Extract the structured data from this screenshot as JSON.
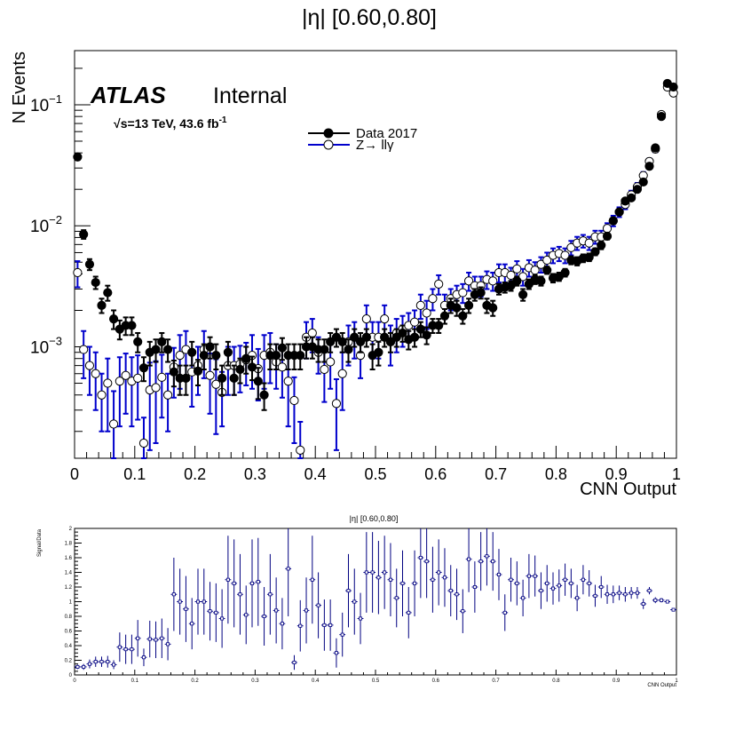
{
  "chart_data": [
    {
      "type": "scatter",
      "title": "|η| [0.60,0.80]",
      "xlabel": "CNN Output",
      "ylabel": "N Events",
      "xlim": [
        0,
        1
      ],
      "ylim": [
        0.00012,
        0.28
      ],
      "yscale": "log",
      "grid": false,
      "legend_position": "top-center",
      "xticks": [
        "0",
        "0.1",
        "0.2",
        "0.3",
        "0.4",
        "0.5",
        "0.6",
        "0.7",
        "0.8",
        "0.9",
        "1"
      ],
      "yticks": [
        {
          "base": "10",
          "exp": "−1",
          "value": 0.1
        },
        {
          "base": "10",
          "exp": "−2",
          "value": 0.01
        },
        {
          "base": "10",
          "exp": "−3",
          "value": 0.001
        }
      ],
      "annotations": {
        "atlas": "ATLAS",
        "status": "Internal",
        "energy_prefix": "√",
        "energy_main": "s=13 TeV, 43.6 fb",
        "energy_exp": "-1"
      },
      "series": [
        {
          "name": "Data 2017",
          "marker": "filled-circle",
          "color": "#000000",
          "x": [
            0.005,
            0.015,
            0.025,
            0.035,
            0.045,
            0.055,
            0.065,
            0.075,
            0.085,
            0.095,
            0.105,
            0.115,
            0.125,
            0.135,
            0.145,
            0.155,
            0.165,
            0.175,
            0.185,
            0.195,
            0.205,
            0.215,
            0.225,
            0.235,
            0.245,
            0.255,
            0.265,
            0.275,
            0.285,
            0.295,
            0.305,
            0.315,
            0.325,
            0.335,
            0.345,
            0.355,
            0.365,
            0.375,
            0.385,
            0.395,
            0.405,
            0.415,
            0.425,
            0.435,
            0.445,
            0.455,
            0.465,
            0.475,
            0.485,
            0.495,
            0.505,
            0.515,
            0.525,
            0.535,
            0.545,
            0.555,
            0.565,
            0.575,
            0.585,
            0.595,
            0.605,
            0.615,
            0.625,
            0.635,
            0.645,
            0.655,
            0.665,
            0.675,
            0.685,
            0.695,
            0.705,
            0.715,
            0.725,
            0.735,
            0.745,
            0.755,
            0.765,
            0.775,
            0.785,
            0.795,
            0.805,
            0.815,
            0.825,
            0.835,
            0.845,
            0.855,
            0.865,
            0.875,
            0.885,
            0.895,
            0.905,
            0.915,
            0.925,
            0.935,
            0.945,
            0.955,
            0.965,
            0.975,
            0.985,
            0.995
          ],
          "y": [
            0.037,
            0.0085,
            0.0048,
            0.0034,
            0.0022,
            0.0028,
            0.0017,
            0.0014,
            0.0015,
            0.0015,
            0.0011,
            0.00067,
            0.0009,
            0.00095,
            0.0011,
            0.00095,
            0.00062,
            0.00055,
            0.00055,
            0.0009,
            0.00063,
            0.00085,
            0.001,
            0.00085,
            0.00055,
            0.0009,
            0.00055,
            0.00065,
            0.0008,
            0.00068,
            0.00052,
            0.0004,
            0.00085,
            0.00085,
            0.00098,
            0.00085,
            0.00085,
            0.00085,
            0.001,
            0.001,
            0.00095,
            0.00095,
            0.0011,
            0.0012,
            0.0011,
            0.00095,
            0.0012,
            0.0011,
            0.0012,
            0.00085,
            0.0009,
            0.0012,
            0.0011,
            0.0012,
            0.0013,
            0.00115,
            0.0012,
            0.0014,
            0.00125,
            0.0015,
            0.0015,
            0.0018,
            0.0022,
            0.0021,
            0.0018,
            0.0022,
            0.0027,
            0.0028,
            0.0022,
            0.0021,
            0.003,
            0.0031,
            0.0032,
            0.0035,
            0.0027,
            0.0033,
            0.0036,
            0.0035,
            0.0043,
            0.0037,
            0.0038,
            0.0041,
            0.0052,
            0.0051,
            0.0054,
            0.0055,
            0.0061,
            0.0069,
            0.0082,
            0.011,
            0.013,
            0.016,
            0.017,
            0.02,
            0.023,
            0.031,
            0.044,
            0.08,
            0.15,
            0.14
          ],
          "yerr": [
            0.002,
            0.0007,
            0.0005,
            0.0004,
            0.0003,
            0.0004,
            0.0003,
            0.00025,
            0.00025,
            0.00025,
            0.0002,
            0.00015,
            0.0002,
            0.0002,
            0.0002,
            0.0002,
            0.00015,
            0.00015,
            0.00015,
            0.0002,
            0.00015,
            0.0002,
            0.0002,
            0.0002,
            0.00015,
            0.0002,
            0.00015,
            0.00015,
            0.0002,
            0.00015,
            0.00015,
            0.0001,
            0.0002,
            0.0002,
            0.0002,
            0.0002,
            0.0002,
            0.0002,
            0.0002,
            0.0002,
            0.0002,
            0.0002,
            0.0002,
            0.0002,
            0.0002,
            0.0002,
            0.0002,
            0.0002,
            0.0002,
            0.0002,
            0.0002,
            0.0002,
            0.0002,
            0.0002,
            0.0002,
            0.0002,
            0.0002,
            0.0002,
            0.0002,
            0.0002,
            0.0002,
            0.00025,
            0.0003,
            0.0003,
            0.00025,
            0.0003,
            0.0003,
            0.0003,
            0.0003,
            0.0003,
            0.0003,
            0.0003,
            0.0003,
            0.0003,
            0.0003,
            0.0003,
            0.0003,
            0.0003,
            0.0003,
            0.0003,
            0.0003,
            0.0003,
            0.0004,
            0.0004,
            0.0004,
            0.0004,
            0.0004,
            0.0005,
            0.0005,
            0.0006,
            0.0007,
            0.0008,
            0.0008,
            0.0009,
            0.001,
            0.0012,
            0.0015,
            0.002,
            0.003,
            0.003
          ]
        },
        {
          "name": "Z→ llγ",
          "marker": "open-circle",
          "color": "#0000cc",
          "x": [
            0.005,
            0.015,
            0.025,
            0.035,
            0.045,
            0.055,
            0.065,
            0.075,
            0.085,
            0.095,
            0.105,
            0.115,
            0.125,
            0.135,
            0.145,
            0.155,
            0.165,
            0.175,
            0.185,
            0.195,
            0.205,
            0.215,
            0.225,
            0.235,
            0.245,
            0.255,
            0.265,
            0.275,
            0.285,
            0.295,
            0.305,
            0.315,
            0.325,
            0.335,
            0.345,
            0.355,
            0.365,
            0.375,
            0.385,
            0.395,
            0.405,
            0.415,
            0.425,
            0.435,
            0.445,
            0.455,
            0.465,
            0.475,
            0.485,
            0.495,
            0.505,
            0.515,
            0.525,
            0.535,
            0.545,
            0.555,
            0.565,
            0.575,
            0.585,
            0.595,
            0.605,
            0.615,
            0.625,
            0.635,
            0.645,
            0.655,
            0.665,
            0.675,
            0.685,
            0.695,
            0.705,
            0.715,
            0.725,
            0.735,
            0.745,
            0.755,
            0.765,
            0.775,
            0.785,
            0.795,
            0.805,
            0.815,
            0.825,
            0.835,
            0.845,
            0.855,
            0.865,
            0.875,
            0.885,
            0.895,
            0.905,
            0.915,
            0.925,
            0.935,
            0.945,
            0.955,
            0.965,
            0.975,
            0.985,
            0.995
          ],
          "y": [
            0.0041,
            0.00095,
            0.0007,
            0.0006,
            0.0004,
            0.0005,
            0.00023,
            0.00052,
            0.00058,
            0.00052,
            0.00055,
            0.00016,
            0.00044,
            0.00046,
            0.00056,
            0.0004,
            0.00068,
            0.00085,
            0.00095,
            0.00062,
            0.0007,
            0.00095,
            0.00058,
            0.00049,
            0.00042,
            0.0007,
            0.0007,
            0.00072,
            0.00078,
            0.00085,
            0.00066,
            0.00085,
            0.0009,
            0.00075,
            0.00068,
            0.00052,
            0.00036,
            0.00014,
            0.0012,
            0.0013,
            0.0009,
            0.00065,
            0.00075,
            0.00034,
            0.0006,
            0.0011,
            0.0012,
            0.00085,
            0.0017,
            0.0012,
            0.0012,
            0.0017,
            0.0011,
            0.0013,
            0.0014,
            0.0015,
            0.0016,
            0.0022,
            0.0019,
            0.0025,
            0.0033,
            0.0022,
            0.0025,
            0.0027,
            0.0028,
            0.0035,
            0.0032,
            0.0032,
            0.0036,
            0.0035,
            0.0041,
            0.0041,
            0.0039,
            0.0044,
            0.0038,
            0.0045,
            0.0043,
            0.0048,
            0.0052,
            0.0057,
            0.0059,
            0.0057,
            0.0066,
            0.0072,
            0.0075,
            0.0072,
            0.0081,
            0.0081,
            0.0095,
            0.011,
            0.013,
            0.015,
            0.018,
            0.021,
            0.026,
            0.034,
            0.043,
            0.083,
            0.14,
            0.125
          ],
          "yerr": [
            0.001,
            0.0004,
            0.0003,
            0.0003,
            0.0002,
            0.0003,
            0.0002,
            0.0003,
            0.0003,
            0.0003,
            0.0003,
            0.0001,
            0.0003,
            0.0003,
            0.0003,
            0.0002,
            0.0003,
            0.0004,
            0.0004,
            0.0003,
            0.0003,
            0.0004,
            0.0003,
            0.0003,
            0.0002,
            0.0003,
            0.0003,
            0.0003,
            0.0003,
            0.0004,
            0.0003,
            0.0004,
            0.0004,
            0.0003,
            0.0003,
            0.0003,
            0.0002,
            0.0001,
            0.0004,
            0.0004,
            0.0003,
            0.0003,
            0.0003,
            0.0002,
            0.0003,
            0.0004,
            0.0004,
            0.0003,
            0.0005,
            0.0004,
            0.0004,
            0.0005,
            0.0004,
            0.0004,
            0.0004,
            0.0004,
            0.0004,
            0.0005,
            0.0005,
            0.0005,
            0.0006,
            0.0005,
            0.0005,
            0.0005,
            0.0005,
            0.0006,
            0.0006,
            0.0006,
            0.0006,
            0.0006,
            0.0007,
            0.0007,
            0.0006,
            0.0007,
            0.0006,
            0.0007,
            0.0007,
            0.0007,
            0.0008,
            0.0008,
            0.0008,
            0.0008,
            0.0009,
            0.0009,
            0.0009,
            0.0009,
            0.001,
            0.001,
            0.001,
            0.0011,
            0.0012,
            0.0013,
            0.0015,
            0.0016,
            0.0018,
            0.002,
            0.0025,
            0.004,
            0.006,
            0.006
          ]
        }
      ]
    },
    {
      "type": "scatter",
      "title": "|η| [0.60,0.80]",
      "xlabel": "CNN Output",
      "ylabel": "Signal/Data",
      "xlim": [
        0,
        1
      ],
      "ylim": [
        0,
        2
      ],
      "grid": false,
      "xticks": [
        "0",
        "0.1",
        "0.2",
        "0.3",
        "0.4",
        "0.5",
        "0.6",
        "0.7",
        "0.8",
        "0.9",
        "1"
      ],
      "yticks": [
        "0",
        "0.2",
        "0.4",
        "0.6",
        "0.8",
        "1",
        "1.2",
        "1.4",
        "1.6",
        "1.8",
        "2"
      ],
      "series": [
        {
          "name": "Signal/Data",
          "marker": "open-square",
          "color": "#000080",
          "x": [
            0.005,
            0.015,
            0.025,
            0.035,
            0.045,
            0.055,
            0.065,
            0.075,
            0.085,
            0.095,
            0.105,
            0.115,
            0.125,
            0.135,
            0.145,
            0.155,
            0.165,
            0.175,
            0.185,
            0.195,
            0.205,
            0.215,
            0.225,
            0.235,
            0.245,
            0.255,
            0.265,
            0.275,
            0.285,
            0.295,
            0.305,
            0.315,
            0.325,
            0.335,
            0.345,
            0.355,
            0.365,
            0.375,
            0.385,
            0.395,
            0.405,
            0.415,
            0.425,
            0.435,
            0.445,
            0.455,
            0.465,
            0.475,
            0.485,
            0.495,
            0.505,
            0.515,
            0.525,
            0.535,
            0.545,
            0.555,
            0.565,
            0.575,
            0.585,
            0.595,
            0.605,
            0.615,
            0.625,
            0.635,
            0.645,
            0.655,
            0.665,
            0.675,
            0.685,
            0.695,
            0.705,
            0.715,
            0.725,
            0.735,
            0.745,
            0.755,
            0.765,
            0.775,
            0.785,
            0.795,
            0.805,
            0.815,
            0.825,
            0.835,
            0.845,
            0.855,
            0.865,
            0.875,
            0.885,
            0.895,
            0.905,
            0.915,
            0.925,
            0.935,
            0.945,
            0.955,
            0.965,
            0.975,
            0.985,
            0.995
          ],
          "y": [
            0.11,
            0.11,
            0.15,
            0.18,
            0.18,
            0.18,
            0.14,
            0.38,
            0.35,
            0.35,
            0.5,
            0.24,
            0.49,
            0.48,
            0.5,
            0.42,
            1.1,
            1.0,
            0.9,
            0.7,
            1.0,
            1.0,
            0.87,
            0.85,
            0.77,
            1.3,
            1.25,
            1.1,
            0.82,
            1.25,
            1.27,
            0.8,
            1.1,
            0.88,
            0.7,
            1.45,
            0.17,
            0.67,
            0.88,
            1.3,
            0.95,
            0.68,
            0.68,
            0.3,
            0.55,
            1.15,
            1.0,
            0.77,
            1.4,
            1.4,
            1.33,
            1.4,
            1.3,
            1.05,
            1.25,
            0.85,
            1.25,
            1.6,
            1.55,
            1.3,
            1.4,
            1.33,
            1.15,
            1.1,
            0.87,
            1.58,
            1.2,
            1.55,
            1.62,
            1.55,
            1.37,
            0.85,
            1.3,
            1.25,
            1.05,
            1.35,
            1.35,
            1.15,
            1.25,
            1.18,
            1.22,
            1.3,
            1.25,
            1.05,
            1.3,
            1.25,
            1.08,
            1.2,
            1.1,
            1.1,
            1.12,
            1.1,
            1.12,
            1.12,
            0.97,
            1.15,
            1.02,
            1.02,
            1.0,
            0.89
          ],
          "yerr": [
            0.03,
            0.04,
            0.06,
            0.07,
            0.07,
            0.08,
            0.06,
            0.2,
            0.2,
            0.2,
            0.25,
            0.12,
            0.25,
            0.25,
            0.27,
            0.22,
            0.5,
            0.45,
            0.45,
            0.35,
            0.45,
            0.45,
            0.4,
            0.4,
            0.4,
            0.6,
            0.6,
            0.55,
            0.4,
            0.6,
            0.6,
            0.4,
            0.55,
            0.45,
            0.35,
            0.65,
            0.1,
            0.35,
            0.45,
            0.6,
            0.45,
            0.35,
            0.35,
            0.2,
            0.3,
            0.5,
            0.45,
            0.35,
            0.55,
            0.55,
            0.5,
            0.5,
            0.5,
            0.4,
            0.45,
            0.35,
            0.45,
            0.55,
            0.5,
            0.45,
            0.45,
            0.4,
            0.35,
            0.35,
            0.3,
            0.45,
            0.35,
            0.4,
            0.4,
            0.4,
            0.35,
            0.25,
            0.3,
            0.3,
            0.25,
            0.3,
            0.28,
            0.25,
            0.25,
            0.22,
            0.22,
            0.22,
            0.2,
            0.18,
            0.2,
            0.18,
            0.15,
            0.15,
            0.13,
            0.12,
            0.1,
            0.1,
            0.08,
            0.08,
            0.07,
            0.05,
            0.04,
            0.03,
            0.025,
            0.02
          ]
        }
      ]
    }
  ]
}
